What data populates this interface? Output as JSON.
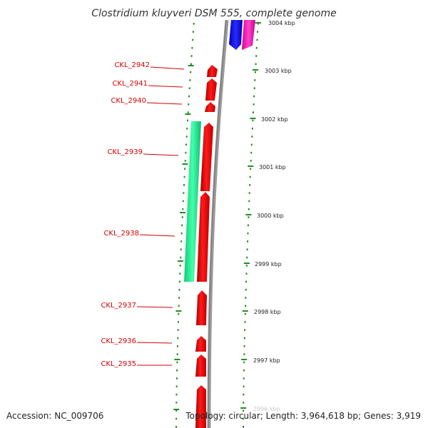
{
  "title": "Clostridium kluyveri DSM 555, complete genome",
  "accession": "Accession: NC_009706",
  "topology": "Topology: circular; Length: 3,964,618 bp; Genes: 3,919",
  "scale_labels": [
    "3004 kbp",
    "3003 kbp",
    "3002 kbp",
    "3001 kbp",
    "3000 kbp",
    "2999 kbp",
    "2998 kbp",
    "2997 kbp",
    "2996 kbp"
  ],
  "gene_labels": [
    "CKL_2942",
    "CKL_2941",
    "CKL_2940",
    "CKL_2939",
    "CKL_2938",
    "CKL_2937",
    "CKL_2936",
    "CKL_2935"
  ],
  "colors": {
    "forward_cds": "#ff0000",
    "other_feature": "#22ee99",
    "top_blue": "#0000ff",
    "top_magenta": "#ff22bb",
    "backbone": "#888888",
    "tick_green": "#228b22",
    "label_red": "#d40000"
  }
}
